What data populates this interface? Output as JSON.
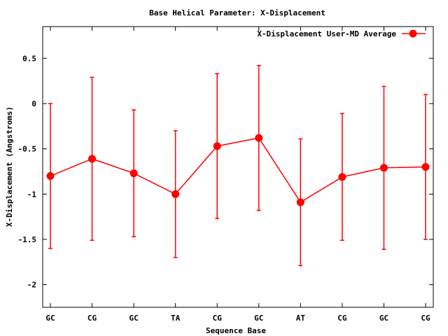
{
  "chart_data": {
    "type": "line",
    "title": "Base  Helical Parameter: X-Displacement",
    "xlabel": "Sequence Base",
    "ylabel": "X-Displacement (Angstroms)",
    "categories": [
      "GC",
      "CG",
      "GC",
      "TA",
      "CG",
      "GC",
      "AT",
      "CG",
      "GC",
      "CG"
    ],
    "series": [
      {
        "name": "X-Displacement User-MD Average",
        "color": "#ff0000",
        "values": [
          -0.8,
          -0.61,
          -0.77,
          -1.0,
          -0.47,
          -0.38,
          -1.09,
          -0.81,
          -0.71,
          -0.7
        ],
        "err_low": [
          -1.6,
          -1.51,
          -1.47,
          -1.7,
          -1.27,
          -1.18,
          -1.79,
          -1.51,
          -1.61,
          -1.5
        ],
        "err_high": [
          0.0,
          0.29,
          -0.07,
          -0.3,
          0.33,
          0.42,
          -0.39,
          -0.11,
          0.19,
          0.1
        ]
      }
    ],
    "ylim": [
      -2.25,
      0.85
    ],
    "yticks": [
      0.5,
      0,
      -0.5,
      -1,
      -1.5,
      -2
    ],
    "ytick_labels": [
      "0.5",
      "0",
      "-0.5",
      "-1",
      "-1.5",
      "-2"
    ],
    "grid": false,
    "legend_position": "top-right"
  }
}
